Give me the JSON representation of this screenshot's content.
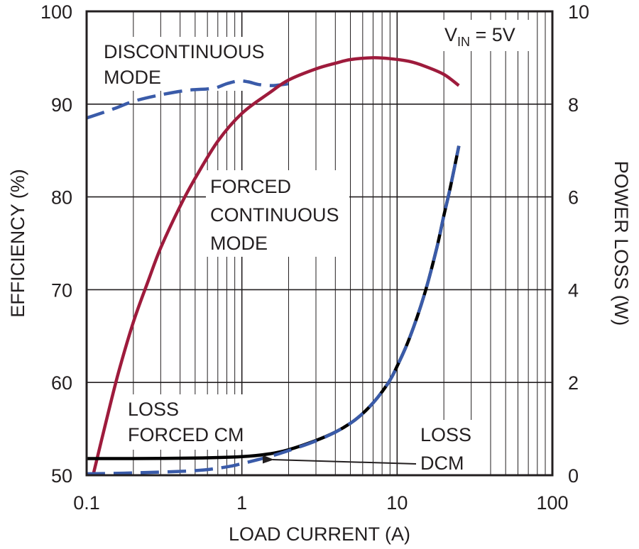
{
  "chart_data": {
    "type": "line",
    "xlabel": "LOAD CURRENT (A)",
    "ylabel": "EFFICIENCY (%)",
    "y2label": "POWER LOSS (W)",
    "xscale": "log",
    "xlim": [
      0.1,
      100
    ],
    "ylim": [
      50,
      100
    ],
    "y2lim": [
      0,
      10
    ],
    "grid": true,
    "x_ticks": [
      0.1,
      1,
      10,
      100
    ],
    "x_tick_labels": [
      "0.1",
      "1",
      "10",
      "100"
    ],
    "y_ticks": [
      50,
      60,
      70,
      80,
      90,
      100
    ],
    "y_tick_labels": [
      "50",
      "60",
      "70",
      "80",
      "90",
      "100"
    ],
    "y2_ticks": [
      0,
      2,
      4,
      6,
      8,
      10
    ],
    "y2_tick_labels": [
      "0",
      "2",
      "4",
      "6",
      "8",
      "10"
    ],
    "annotations": {
      "vin_main": "V",
      "vin_sub": "IN",
      "vin_value": " = 5V",
      "dcm_line1": "DISCONTINUOUS",
      "dcm_line2": "MODE",
      "fcm_line1": "FORCED",
      "fcm_line2": "CONTINUOUS",
      "fcm_line3": "MODE",
      "loss_fcm_line1": "LOSS",
      "loss_fcm_line2": "FORCED CM",
      "loss_dcm_line1": "LOSS",
      "loss_dcm_line2": "DCM"
    },
    "series": [
      {
        "axis": "left",
        "style": "dashed",
        "color": "#3a5ba9",
        "x": [
          0.1,
          0.15,
          0.2,
          0.3,
          0.45,
          0.65,
          0.8,
          0.95,
          1.1,
          1.3,
          1.6,
          2.0
        ],
        "y": [
          88.5,
          89.5,
          90.3,
          91.0,
          91.5,
          91.7,
          92.2,
          92.5,
          92.4,
          92.1,
          92.0,
          92.2
        ]
      },
      {
        "axis": "left",
        "style": "solid",
        "color": "#9e1b3c",
        "x": [
          0.11,
          0.13,
          0.16,
          0.2,
          0.25,
          0.3,
          0.4,
          0.5,
          0.7,
          1.0,
          1.5,
          2.0,
          3.0,
          4.0,
          5.0,
          7.0,
          9.0,
          12.0,
          15.0,
          20.0,
          25.0
        ],
        "y": [
          50.0,
          55.0,
          61.0,
          66.5,
          71.0,
          74.5,
          79.0,
          82.0,
          86.0,
          89.0,
          91.2,
          92.6,
          93.8,
          94.4,
          94.8,
          95.0,
          94.9,
          94.6,
          94.1,
          93.2,
          92.0
        ]
      },
      {
        "axis": "right",
        "style": "solid",
        "color": "#000000",
        "x": [
          0.1,
          0.2,
          0.5,
          1.0,
          1.5,
          2.0,
          3.0,
          4.0,
          5.0,
          6.0,
          7.0,
          8.0,
          9.0,
          10.0,
          12.0,
          15.0,
          18.0,
          20.0,
          22.0,
          25.0
        ],
        "y": [
          0.36,
          0.36,
          0.37,
          0.4,
          0.46,
          0.55,
          0.75,
          0.93,
          1.12,
          1.33,
          1.56,
          1.8,
          2.05,
          2.35,
          2.95,
          3.9,
          4.9,
          5.6,
          6.2,
          7.1
        ]
      },
      {
        "axis": "right",
        "style": "dashed",
        "color": "#3a5ba9",
        "x": [
          0.1,
          0.2,
          0.5,
          0.8,
          1.0,
          1.5,
          2.0,
          3.0,
          4.0,
          5.0,
          6.0,
          7.0,
          8.0,
          9.0,
          10.0,
          12.0,
          15.0,
          18.0,
          20.0,
          22.0,
          25.0
        ],
        "y": [
          0.03,
          0.05,
          0.1,
          0.18,
          0.25,
          0.4,
          0.53,
          0.74,
          0.93,
          1.12,
          1.33,
          1.56,
          1.8,
          2.05,
          2.35,
          2.95,
          3.9,
          4.9,
          5.6,
          6.2,
          7.1
        ]
      }
    ]
  }
}
